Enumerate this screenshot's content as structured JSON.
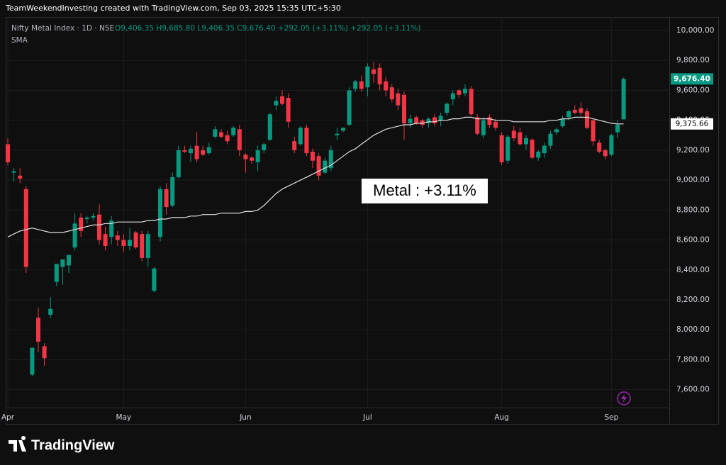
{
  "header": "TeamWeekendInvesting created with TradingView.com, Sep 03, 2025 15:35 UTC+5:30",
  "brand": "TradingView",
  "chart_data": {
    "type": "candlestick",
    "title": "Nifty Metal Index · 1D · NSE",
    "ohlc_text": "O9,406.35 H9,685.80 L9,406.35 C9,676.40 +292.05 (+3.11%) +292.05 (+3.11%)",
    "annotation": "Metal : +3.11%",
    "up_color": "#089981",
    "down_color": "#f23645",
    "grid": true,
    "categories": [
      "Apr",
      null,
      null,
      null,
      null,
      null,
      null,
      null,
      null,
      null,
      null,
      null,
      null,
      null,
      null,
      null,
      null,
      null,
      null,
      "May",
      null,
      null,
      null,
      null,
      null,
      null,
      null,
      null,
      null,
      null,
      null,
      null,
      null,
      null,
      null,
      null,
      null,
      null,
      null,
      "Jun",
      null,
      null,
      null,
      null,
      null,
      null,
      null,
      null,
      null,
      null,
      null,
      null,
      null,
      null,
      null,
      null,
      null,
      null,
      null,
      "Jul",
      null,
      null,
      null,
      null,
      null,
      null,
      null,
      null,
      null,
      null,
      null,
      null,
      null,
      null,
      null,
      null,
      null,
      null,
      null,
      null,
      null,
      "Aug",
      null,
      null,
      null,
      null,
      null,
      null,
      null,
      null,
      null,
      null,
      null,
      null,
      null,
      null,
      null,
      null,
      null,
      "Sep",
      null,
      null
    ],
    "ohlc": [
      [
        9240,
        9280,
        9100,
        9120
      ],
      [
        9050,
        9080,
        8990,
        9060
      ],
      [
        9030,
        9080,
        8980,
        9010
      ],
      [
        8940,
        8960,
        8380,
        8420
      ],
      [
        7700,
        7880,
        7690,
        7880
      ],
      [
        8080,
        8150,
        7850,
        7920
      ],
      [
        7890,
        7910,
        7760,
        7810
      ],
      [
        8100,
        8220,
        8080,
        8140
      ],
      [
        8320,
        8440,
        8290,
        8440
      ],
      [
        8420,
        8470,
        8300,
        8470
      ],
      [
        8430,
        8500,
        8380,
        8500
      ],
      [
        8550,
        8780,
        8530,
        8710
      ],
      [
        8750,
        8780,
        8620,
        8660
      ],
      [
        8740,
        8760,
        8710,
        8750
      ],
      [
        8750,
        8780,
        8730,
        8760
      ],
      [
        8770,
        8840,
        8570,
        8600
      ],
      [
        8640,
        8690,
        8530,
        8560
      ],
      [
        8620,
        8760,
        8570,
        8730
      ],
      [
        8630,
        8660,
        8560,
        8600
      ],
      [
        8600,
        8640,
        8520,
        8560
      ],
      [
        8560,
        8680,
        8530,
        8600
      ],
      [
        8650,
        8660,
        8540,
        8550
      ],
      [
        8640,
        8660,
        8460,
        8480
      ],
      [
        8480,
        8660,
        8420,
        8640
      ],
      [
        8260,
        8420,
        8250,
        8410
      ],
      [
        8620,
        8960,
        8590,
        8940
      ],
      [
        8940,
        8980,
        8770,
        8820
      ],
      [
        8830,
        9050,
        8820,
        9020
      ],
      [
        9020,
        9230,
        9010,
        9200
      ],
      [
        9200,
        9230,
        9180,
        9190
      ],
      [
        9180,
        9230,
        9120,
        9210
      ],
      [
        9230,
        9320,
        9120,
        9140
      ],
      [
        9200,
        9230,
        9160,
        9170
      ],
      [
        9180,
        9250,
        9170,
        9220
      ],
      [
        9290,
        9360,
        9280,
        9340
      ],
      [
        9320,
        9340,
        9280,
        9290
      ],
      [
        9300,
        9330,
        9240,
        9260
      ],
      [
        9300,
        9360,
        9290,
        9350
      ],
      [
        9340,
        9370,
        9160,
        9200
      ],
      [
        9170,
        9180,
        9050,
        9140
      ],
      [
        9150,
        9160,
        9110,
        9130
      ],
      [
        9120,
        9230,
        9060,
        9200
      ],
      [
        9200,
        9250,
        9180,
        9240
      ],
      [
        9270,
        9450,
        9260,
        9440
      ],
      [
        9500,
        9560,
        9470,
        9530
      ],
      [
        9560,
        9600,
        9500,
        9510
      ],
      [
        9550,
        9580,
        9350,
        9390
      ],
      [
        9260,
        9290,
        9180,
        9200
      ],
      [
        9240,
        9360,
        9230,
        9350
      ],
      [
        9350,
        9370,
        9160,
        9180
      ],
      [
        9190,
        9210,
        9080,
        9130
      ],
      [
        9160,
        9180,
        9000,
        9030
      ],
      [
        9050,
        9150,
        9040,
        9130
      ],
      [
        9080,
        9230,
        9060,
        9200
      ],
      [
        9300,
        9350,
        9270,
        9310
      ],
      [
        9330,
        9350,
        9320,
        9350
      ],
      [
        9370,
        9620,
        9360,
        9600
      ],
      [
        9610,
        9670,
        9590,
        9660
      ],
      [
        9660,
        9700,
        9590,
        9610
      ],
      [
        9620,
        9780,
        9560,
        9760
      ],
      [
        9740,
        9790,
        9650,
        9710
      ],
      [
        9750,
        9780,
        9600,
        9640
      ],
      [
        9660,
        9690,
        9560,
        9600
      ],
      [
        9620,
        9640,
        9520,
        9540
      ],
      [
        9580,
        9610,
        9470,
        9500
      ],
      [
        9570,
        9590,
        9270,
        9380
      ],
      [
        9380,
        9440,
        9350,
        9410
      ],
      [
        9420,
        9430,
        9370,
        9380
      ],
      [
        9400,
        9410,
        9350,
        9370
      ],
      [
        9380,
        9420,
        9350,
        9410
      ],
      [
        9420,
        9440,
        9360,
        9380
      ],
      [
        9400,
        9450,
        9360,
        9430
      ],
      [
        9450,
        9520,
        9430,
        9510
      ],
      [
        9540,
        9600,
        9500,
        9580
      ],
      [
        9600,
        9610,
        9550,
        9570
      ],
      [
        9580,
        9640,
        9560,
        9610
      ],
      [
        9610,
        9630,
        9430,
        9440
      ],
      [
        9420,
        9440,
        9300,
        9310
      ],
      [
        9300,
        9420,
        9280,
        9400
      ],
      [
        9420,
        9440,
        9350,
        9370
      ],
      [
        9390,
        9410,
        9330,
        9350
      ],
      [
        9300,
        9320,
        9100,
        9120
      ],
      [
        9130,
        9300,
        9110,
        9290
      ],
      [
        9330,
        9360,
        9260,
        9280
      ],
      [
        9320,
        9350,
        9230,
        9240
      ],
      [
        9240,
        9300,
        9200,
        9280
      ],
      [
        9270,
        9280,
        9140,
        9150
      ],
      [
        9150,
        9200,
        9130,
        9190
      ],
      [
        9180,
        9250,
        9150,
        9230
      ],
      [
        9230,
        9330,
        9210,
        9310
      ],
      [
        9320,
        9350,
        9300,
        9340
      ],
      [
        9360,
        9430,
        9350,
        9410
      ],
      [
        9420,
        9470,
        9400,
        9460
      ],
      [
        9470,
        9500,
        9440,
        9450
      ],
      [
        9480,
        9520,
        9430,
        9450
      ],
      [
        9460,
        9480,
        9340,
        9350
      ],
      [
        9400,
        9410,
        9230,
        9260
      ],
      [
        9250,
        9270,
        9180,
        9190
      ],
      [
        9200,
        9210,
        9140,
        9160
      ],
      [
        9170,
        9310,
        9160,
        9300
      ],
      [
        9320,
        9400,
        9280,
        9370
      ],
      [
        9406.35,
        9685.8,
        9406.35,
        9676.4
      ]
    ],
    "sma": {
      "name": "SMA",
      "color": "#e0e0e0",
      "values": [
        8620,
        8640,
        8660,
        8670,
        8680,
        8670,
        8660,
        8650,
        8650,
        8650,
        8660,
        8670,
        8680,
        8690,
        8700,
        8700,
        8710,
        8710,
        8720,
        8720,
        8720,
        8720,
        8720,
        8730,
        8730,
        8740,
        8740,
        8750,
        8750,
        8750,
        8760,
        8760,
        8770,
        8770,
        8770,
        8780,
        8780,
        8780,
        8780,
        8790,
        8790,
        8800,
        8830,
        8870,
        8910,
        8940,
        8960,
        8980,
        9000,
        9020,
        9040,
        9060,
        9080,
        9100,
        9130,
        9160,
        9190,
        9210,
        9240,
        9270,
        9300,
        9320,
        9340,
        9350,
        9360,
        9370,
        9370,
        9380,
        9380,
        9390,
        9390,
        9400,
        9400,
        9410,
        9410,
        9420,
        9420,
        9410,
        9410,
        9410,
        9400,
        9400,
        9400,
        9390,
        9390,
        9390,
        9390,
        9390,
        9390,
        9400,
        9400,
        9410,
        9410,
        9420,
        9420,
        9420,
        9410,
        9400,
        9390,
        9380,
        9375,
        9375.66
      ]
    },
    "last_price_label": "9,676.40",
    "sma_last_label": "9,375.66",
    "ylim": [
      7480,
      10090
    ],
    "yticks": [
      {
        "value": 7600,
        "label": "7,600.00"
      },
      {
        "value": 7800,
        "label": "7,800.00"
      },
      {
        "value": 8000,
        "label": "8,000.00"
      },
      {
        "value": 8200,
        "label": "8,200.00"
      },
      {
        "value": 8400,
        "label": "8,400.00"
      },
      {
        "value": 8600,
        "label": "8,600.00"
      },
      {
        "value": 8800,
        "label": "8,800.00"
      },
      {
        "value": 9000,
        "label": "9,000.00"
      },
      {
        "value": 9200,
        "label": "9,200.00"
      },
      {
        "value": 9400,
        "label": "9,400.00"
      },
      {
        "value": 9600,
        "label": "9,600.00"
      },
      {
        "value": 9800,
        "label": "9,800.00"
      },
      {
        "value": 10000,
        "label": "10,000.00"
      }
    ]
  }
}
